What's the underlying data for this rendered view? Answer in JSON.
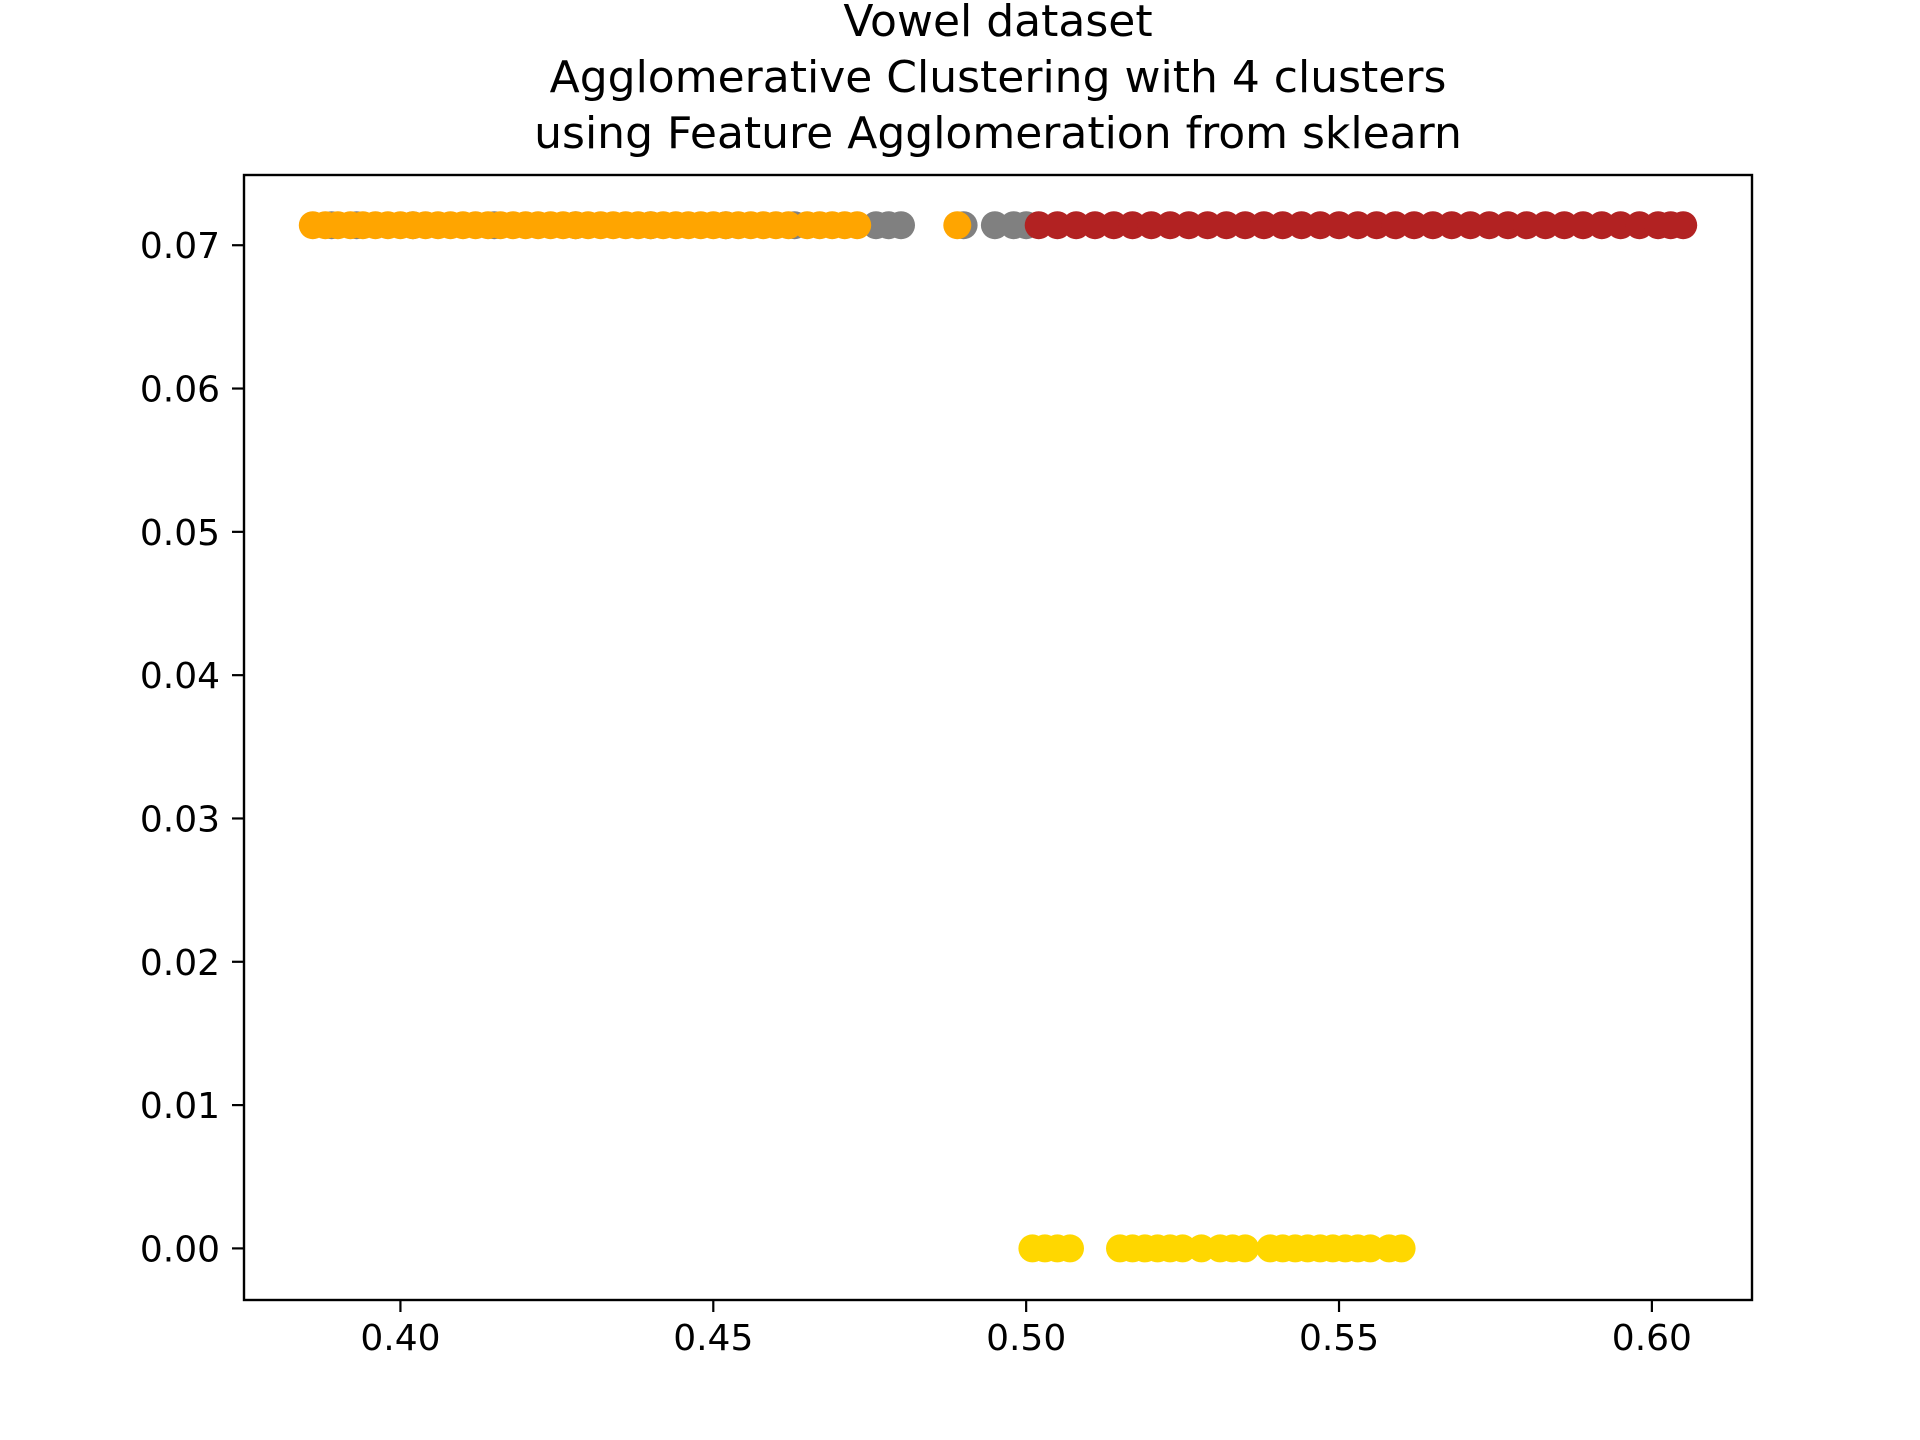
{
  "chart_data": {
    "type": "scatter",
    "title_lines": [
      "Vowel dataset",
      "Agglomerative Clustering with 4 clusters",
      "using Feature Agglomeration from sklearn"
    ],
    "xlabel": "",
    "ylabel": "",
    "xlim": [
      0.375,
      0.616
    ],
    "ylim": [
      -0.0036,
      0.0749
    ],
    "xticks": [
      0.4,
      0.45,
      0.5,
      0.55,
      0.6
    ],
    "xtick_labels": [
      "0.40",
      "0.45",
      "0.50",
      "0.55",
      "0.60"
    ],
    "yticks": [
      0.0,
      0.01,
      0.02,
      0.03,
      0.04,
      0.05,
      0.06,
      0.07
    ],
    "ytick_labels": [
      "0.00",
      "0.01",
      "0.02",
      "0.03",
      "0.04",
      "0.05",
      "0.06",
      "0.07"
    ],
    "grid": false,
    "series": [
      {
        "color": "#808080",
        "y": 0.0714,
        "x": [
          0.389,
          0.393,
          0.402,
          0.415,
          0.428,
          0.44,
          0.452,
          0.463,
          0.476,
          0.478,
          0.48,
          0.49,
          0.495,
          0.498,
          0.5
        ]
      },
      {
        "color": "#FFA500",
        "y": 0.0714,
        "x": [
          0.386,
          0.388,
          0.39,
          0.392,
          0.394,
          0.396,
          0.398,
          0.4,
          0.402,
          0.404,
          0.406,
          0.408,
          0.41,
          0.412,
          0.414,
          0.416,
          0.418,
          0.42,
          0.422,
          0.424,
          0.426,
          0.428,
          0.43,
          0.432,
          0.434,
          0.436,
          0.438,
          0.44,
          0.442,
          0.444,
          0.446,
          0.448,
          0.45,
          0.452,
          0.454,
          0.456,
          0.458,
          0.46,
          0.462,
          0.465,
          0.467,
          0.469,
          0.471,
          0.473,
          0.489
        ]
      },
      {
        "color": "#B22222",
        "y": 0.0714,
        "x": [
          0.502,
          0.505,
          0.508,
          0.511,
          0.514,
          0.517,
          0.52,
          0.523,
          0.526,
          0.529,
          0.532,
          0.535,
          0.538,
          0.541,
          0.544,
          0.547,
          0.55,
          0.553,
          0.556,
          0.559,
          0.562,
          0.565,
          0.568,
          0.571,
          0.574,
          0.577,
          0.58,
          0.583,
          0.586,
          0.589,
          0.592,
          0.595,
          0.598,
          0.601,
          0.603,
          0.605
        ]
      },
      {
        "color": "#FFD700",
        "y": 0.0,
        "x": [
          0.501,
          0.503,
          0.505,
          0.507,
          0.515,
          0.517,
          0.519,
          0.521,
          0.523,
          0.525,
          0.528,
          0.531,
          0.533,
          0.535,
          0.539,
          0.541,
          0.543,
          0.545,
          0.547,
          0.549,
          0.551,
          0.553,
          0.555,
          0.558,
          0.56
        ]
      }
    ]
  }
}
